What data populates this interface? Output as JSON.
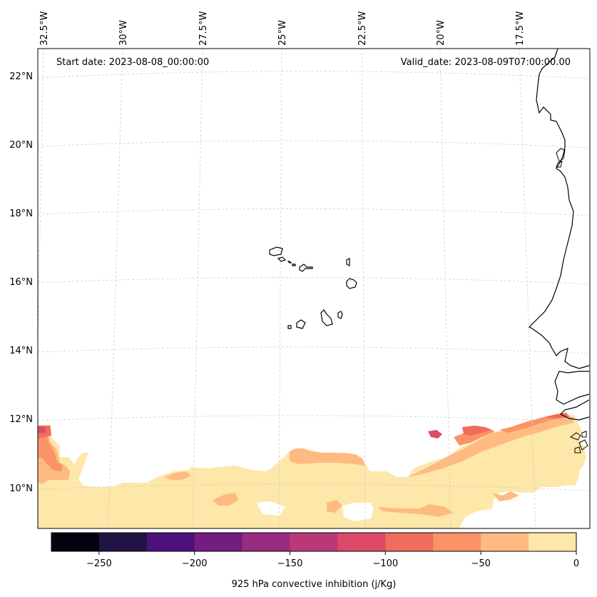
{
  "header": {
    "start_date": "Start date: 2023-08-08_00:00:00",
    "valid_date": "Valid_date: 2023-08-09T07:00:00.00"
  },
  "axes": {
    "longitude_labels": [
      "32.5°W",
      "30°W",
      "27.5°W",
      "25°W",
      "22.5°W",
      "20°W",
      "17.5°W"
    ],
    "latitude_labels": [
      "22°N",
      "20°N",
      "18°N",
      "16°N",
      "14°N",
      "12°N",
      "10°N"
    ]
  },
  "colorbar": {
    "label": "925 hPa convective inhibition (j/Kg)",
    "ticks": [
      "−250",
      "−200",
      "−150",
      "−100",
      "−50",
      "0"
    ],
    "levels": [
      -275,
      -250,
      -225,
      -200,
      -175,
      -150,
      -125,
      -100,
      -75,
      -50,
      -25,
      0
    ],
    "colors": [
      "#04030f",
      "#211445",
      "#4d117b",
      "#731d81",
      "#972c80",
      "#bb3877",
      "#dd4a68",
      "#f06c5c",
      "#fb9366",
      "#febb81",
      "#fde7a9"
    ]
  },
  "chart_data": {
    "type": "heatmap",
    "variable": "925 hPa convective inhibition",
    "units": "j/Kg",
    "value_range": [
      -275,
      0
    ],
    "lon_range_deg": [
      -33,
      -16
    ],
    "lat_range_deg": [
      9,
      23
    ],
    "grid": true
  }
}
